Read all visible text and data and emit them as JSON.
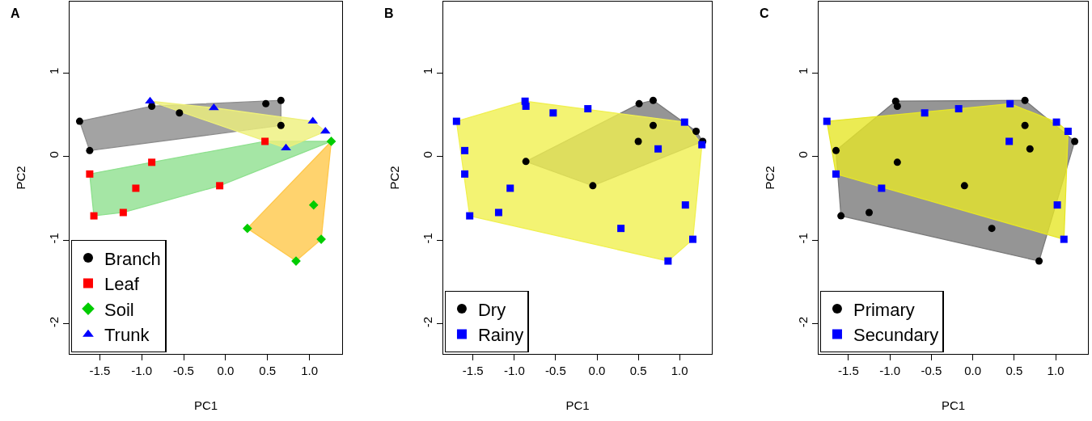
{
  "chart_data": [
    {
      "type": "scatter",
      "title": "A",
      "xlabel": "PC1",
      "ylabel": "PC2",
      "xlim": [
        -1.86,
        1.39
      ],
      "ylim": [
        -2.36,
        1.85
      ],
      "xticks": [
        -1.5,
        {
          "value": -1.0,
          "label": "-1.0"
        },
        -0.5,
        {
          "value": 0.0,
          "label": "0.0"
        },
        0.5,
        {
          "value": 1.0,
          "label": "1.0"
        }
      ],
      "yticks": [
        -2,
        -1,
        0,
        1
      ],
      "legend": "bottom left",
      "series": [
        {
          "type": "area",
          "color": "#8c8c8c",
          "x": [
            -1.74,
            -0.88,
            0.66,
            0.66,
            -1.62
          ],
          "values": [
            0.42,
            0.6,
            0.67,
            0.37,
            0.07
          ]
        },
        {
          "type": "area",
          "color": "#8ee08e",
          "x": [
            -1.62,
            -0.88,
            0.47,
            1.26,
            -0.07,
            -1.22,
            -1.57
          ],
          "values": [
            -0.21,
            -0.07,
            0.18,
            0.18,
            -0.35,
            -0.67,
            -0.71
          ]
        },
        {
          "type": "area",
          "color": "#ffc84a",
          "x": [
            1.26,
            1.14,
            0.84,
            0.26
          ],
          "values": [
            0.18,
            -0.99,
            -1.25,
            -0.86
          ]
        },
        {
          "type": "area",
          "color": "#eef07a",
          "x": [
            -0.9,
            -0.14,
            1.04,
            1.19,
            0.72
          ],
          "values": [
            0.66,
            0.58,
            0.42,
            0.3,
            0.1
          ]
        },
        {
          "name": "Branch",
          "color": "#000000",
          "marker": "circle",
          "x": [
            -1.74,
            -1.62,
            -0.88,
            -0.55,
            0.48,
            0.66,
            0.66
          ],
          "values": [
            0.42,
            0.07,
            0.6,
            0.52,
            0.63,
            0.67,
            0.37
          ]
        },
        {
          "name": "Leaf",
          "color": "#ff0000",
          "marker": "square",
          "x": [
            0.47,
            -0.88,
            -1.62,
            -1.07,
            -0.07,
            -1.22,
            -1.57
          ],
          "values": [
            0.18,
            -0.07,
            -0.21,
            -0.38,
            -0.35,
            -0.67,
            -0.71
          ]
        },
        {
          "name": "Soil",
          "color": "#00cc00",
          "marker": "diamond",
          "x": [
            1.26,
            1.05,
            0.26,
            1.14,
            0.84
          ],
          "values": [
            0.18,
            -0.58,
            -0.86,
            -0.99,
            -1.25
          ]
        },
        {
          "name": "Trunk",
          "color": "#0000ff",
          "marker": "triangle",
          "x": [
            -0.9,
            -0.14,
            1.04,
            1.19,
            0.72
          ],
          "values": [
            0.66,
            0.58,
            0.42,
            0.3,
            0.1
          ]
        }
      ]
    },
    {
      "type": "scatter",
      "title": "B",
      "xlabel": "PC1",
      "ylabel": "PC2",
      "xlim": [
        -1.86,
        1.39
      ],
      "ylim": [
        -2.36,
        1.85
      ],
      "xticks": [
        -1.5,
        {
          "value": -1.0,
          "label": "-1.0"
        },
        -0.5,
        {
          "value": 0.0,
          "label": "0.0"
        },
        0.5,
        {
          "value": 1.0,
          "label": "1.0"
        }
      ],
      "yticks": [
        -2,
        -1,
        0,
        1
      ],
      "legend": "bottom left",
      "series": [
        {
          "type": "area",
          "color": "#7a7a7a",
          "x": [
            -0.86,
            0.51,
            0.68,
            1.2,
            1.28,
            -0.05
          ],
          "values": [
            -0.06,
            0.63,
            0.67,
            0.3,
            0.18,
            -0.35
          ]
        },
        {
          "type": "area",
          "color": "#f0f050",
          "x": [
            -1.7,
            -0.87,
            1.06,
            1.27,
            1.16,
            0.86,
            -1.54
          ],
          "values": [
            0.42,
            0.66,
            0.41,
            0.14,
            -0.99,
            -1.25,
            -0.71
          ]
        },
        {
          "name": "Dry",
          "color": "#000000",
          "marker": "circle",
          "x": [
            0.51,
            0.68,
            0.68,
            0.5,
            1.2,
            1.28,
            -0.86,
            -0.05
          ],
          "values": [
            0.63,
            0.67,
            0.37,
            0.18,
            0.3,
            0.18,
            -0.06,
            -0.35
          ]
        },
        {
          "name": "Rainy",
          "color": "#0000ff",
          "marker": "square",
          "x": [
            -1.7,
            -0.87,
            -0.86,
            -0.53,
            -0.11,
            1.06,
            1.27,
            0.74,
            -1.6,
            -1.6,
            -1.05,
            -1.54,
            -1.19,
            0.29,
            1.07,
            1.16,
            0.86
          ],
          "values": [
            0.42,
            0.66,
            0.6,
            0.52,
            0.57,
            0.41,
            0.14,
            0.09,
            0.07,
            -0.21,
            -0.38,
            -0.71,
            -0.67,
            -0.86,
            -0.58,
            -0.99,
            -1.25
          ]
        }
      ]
    },
    {
      "type": "scatter",
      "title": "C",
      "xlabel": "PC1",
      "ylabel": "PC2",
      "xlim": [
        -1.86,
        1.39
      ],
      "ylim": [
        -2.36,
        1.85
      ],
      "xticks": [
        -1.5,
        {
          "value": -1.0,
          "label": "-1.0"
        },
        -0.5,
        {
          "value": 0.0,
          "label": "0.0"
        },
        0.5,
        {
          "value": 1.0,
          "label": "1.0"
        }
      ],
      "yticks": [
        -2,
        -1,
        0,
        1
      ],
      "legend": "bottom left",
      "series": [
        {
          "type": "area",
          "color": "#7a7a7a",
          "x": [
            -1.65,
            -0.93,
            0.63,
            1.23,
            0.8,
            -1.59
          ],
          "values": [
            0.07,
            0.66,
            0.67,
            0.18,
            -1.25,
            -0.71
          ]
        },
        {
          "type": "area",
          "color": "#e6e628",
          "x": [
            -1.76,
            -0.17,
            0.45,
            1.01,
            1.15,
            1.1,
            -1.65
          ],
          "values": [
            0.42,
            0.57,
            0.63,
            0.41,
            0.3,
            -0.99,
            -0.21
          ]
        },
        {
          "name": "Primary",
          "color": "#000000",
          "marker": "circle",
          "x": [
            -0.93,
            -0.91,
            0.63,
            0.63,
            0.69,
            1.23,
            -1.65,
            -0.91,
            -0.1,
            -1.25,
            -1.59,
            0.23,
            0.8
          ],
          "values": [
            0.66,
            0.6,
            0.67,
            0.37,
            0.09,
            0.18,
            0.07,
            -0.07,
            -0.35,
            -0.67,
            -0.71,
            -0.86,
            -1.25
          ]
        },
        {
          "name": "Secundary",
          "color": "#0000ff",
          "marker": "square",
          "x": [
            -1.76,
            -0.58,
            -0.17,
            0.45,
            1.01,
            1.15,
            0.44,
            -1.65,
            -1.1,
            1.02,
            1.1
          ],
          "values": [
            0.42,
            0.52,
            0.57,
            0.63,
            0.41,
            0.3,
            0.18,
            -0.21,
            -0.38,
            -0.58,
            -0.99
          ]
        }
      ]
    }
  ]
}
